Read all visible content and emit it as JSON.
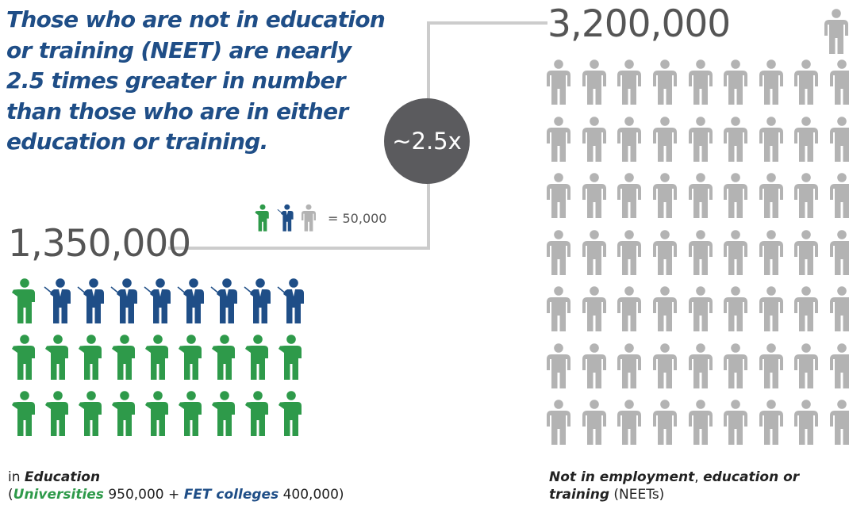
{
  "headline": [
    "Those who are not in education",
    "or training (NEET) are nearly",
    "2.5 times greater in number",
    "than those who are in either",
    "education or training."
  ],
  "education_total": "1,350,000",
  "neet_total": "3,200,000",
  "ratio": "~2.5x",
  "legend": {
    "text": "= 50,000"
  },
  "colors": {
    "university": "#2e9a4a",
    "fet": "#1f4e87",
    "neet": "#b3b3b3",
    "circle": "#5b5b5e",
    "connector": "#cccccc",
    "headline": "#1f4e87"
  },
  "icons": {
    "university": "person-green-icon",
    "fet": "teacher-with-pointer-icon",
    "neet": "person-grey-icon"
  },
  "education_grid": {
    "rows": [
      [
        "university",
        "fet",
        "fet",
        "fet",
        "fet",
        "fet",
        "fet",
        "fet",
        "fet"
      ],
      [
        "university",
        "university",
        "university",
        "university",
        "university",
        "university",
        "university",
        "university",
        "university"
      ],
      [
        "university",
        "university",
        "university",
        "university",
        "university",
        "university",
        "university",
        "university",
        "university"
      ]
    ]
  },
  "neet_grid": {
    "rows": 7,
    "cols": 9,
    "extra": 1
  },
  "captions": {
    "education": {
      "prefix": "in ",
      "label": "Education",
      "open": "(",
      "universities": "Universities",
      "universities_value": " 950,000 + ",
      "fet": "FET colleges",
      "fet_value": " 400,000)"
    },
    "neet": {
      "label1": "Not in employment",
      "comma": ", ",
      "label2": "education or",
      "label3": "training",
      "suffix": " (NEETs)"
    }
  }
}
